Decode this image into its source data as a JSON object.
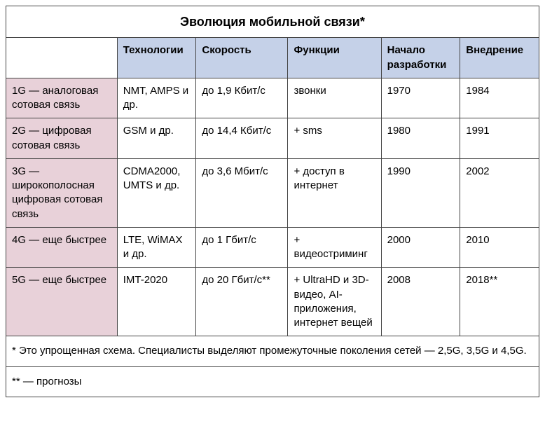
{
  "title": "Эволюция мобильной связи*",
  "columns": {
    "c0": "",
    "c1": "Технологии",
    "c2": "Скорость",
    "c3": "Функции",
    "c4": "Начало разработки",
    "c5": "Внедрение"
  },
  "rows": [
    {
      "label": "1G — аналоговая сотовая связь",
      "tech": "NMT, AMPS и др.",
      "speed": "до 1,9 Кбит/с",
      "func": "звонки",
      "start": "1970",
      "deploy": "1984"
    },
    {
      "label": "2G — цифровая сотовая связь",
      "tech": "GSM и др.",
      "speed": "до 14,4 Кбит/с",
      "func": "+ sms",
      "start": "1980",
      "deploy": "1991"
    },
    {
      "label": "3G — широкополосная цифровая сотовая связь",
      "tech": "CDMA2000, UMTS и др.",
      "speed": "до 3,6 Мбит/с",
      "func": "+ доступ в интернет",
      "start": "1990",
      "deploy": "2002"
    },
    {
      "label": "4G — еще быстрее",
      "tech": "LTE, WiMAX и др.",
      "speed": "до 1 Гбит/с",
      "func": "+ видеостриминг",
      "start": "2000",
      "deploy": "2010"
    },
    {
      "label": "5G — еще быстрее",
      "tech": "IMT-2020",
      "speed": "до 20 Гбит/с**",
      "func": "+ UltraHD и 3D-видео, AI-приложе­ния, интернет вещей",
      "start": "2008",
      "deploy": "2018**"
    }
  ],
  "footnotes": {
    "f1": "* Это упрощенная схема. Специалисты выделяют промежуточные поколения сетей — 2,5G, 3,5G и 4,5G.",
    "f2": "** — прогнозы"
  },
  "style": {
    "header_bg": "#c5d1e8",
    "rowlabel_bg": "#e8d1d9",
    "border_color": "#444444",
    "font": "Arial",
    "title_fontsize": 18,
    "cell_fontsize": 15
  }
}
